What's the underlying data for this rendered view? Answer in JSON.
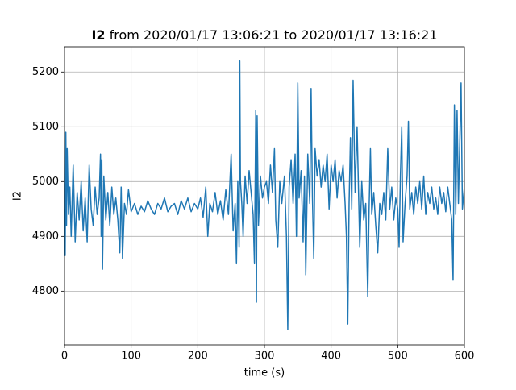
{
  "chart_data": {
    "type": "line",
    "title": {
      "bold": "I2",
      "text": "from 2020/01/17 13:06:21 to 2020/01/17 13:16:21"
    },
    "xlabel": "time (s)",
    "ylabel": "I2",
    "xlim": [
      0,
      600
    ],
    "xticks": [
      0,
      100,
      200,
      300,
      400,
      500,
      600
    ],
    "ylim": [
      4702,
      5246
    ],
    "yticks": [
      4800,
      4900,
      5000,
      5100,
      5200
    ],
    "grid": true,
    "x": [
      0,
      1,
      2,
      3,
      4,
      6,
      8,
      10,
      13,
      16,
      19,
      22,
      25,
      28,
      31,
      34,
      37,
      40,
      43,
      46,
      49,
      52,
      54,
      55,
      56,
      57,
      59,
      62,
      65,
      68,
      71,
      74,
      77,
      80,
      83,
      85,
      87,
      90,
      93,
      96,
      100,
      105,
      110,
      115,
      120,
      125,
      130,
      135,
      140,
      145,
      150,
      155,
      160,
      165,
      170,
      175,
      180,
      185,
      190,
      195,
      200,
      204,
      208,
      212,
      215,
      218,
      222,
      226,
      230,
      234,
      238,
      242,
      246,
      250,
      253,
      256,
      258,
      260,
      262,
      263,
      264,
      266,
      268,
      271,
      274,
      277,
      280,
      283,
      285,
      287,
      288,
      289,
      291,
      294,
      297,
      300,
      303,
      306,
      309,
      312,
      315,
      317,
      320,
      323,
      326,
      330,
      333,
      335,
      337,
      340,
      343,
      346,
      348,
      350,
      352,
      355,
      358,
      360,
      362,
      365,
      368,
      370,
      372,
      374,
      376,
      379,
      382,
      385,
      388,
      391,
      394,
      397,
      400,
      403,
      406,
      409,
      412,
      415,
      418,
      421,
      423,
      425,
      427,
      429,
      431,
      433,
      436,
      439,
      441,
      443,
      446,
      449,
      452,
      455,
      457,
      459,
      461,
      464,
      467,
      470,
      473,
      476,
      479,
      482,
      485,
      488,
      491,
      494,
      497,
      500,
      502,
      504,
      506,
      508,
      511,
      514,
      516,
      518,
      521,
      524,
      527,
      530,
      533,
      536,
      539,
      542,
      545,
      548,
      551,
      554,
      557,
      560,
      563,
      566,
      569,
      572,
      575,
      578,
      581,
      583,
      585,
      587,
      589,
      591,
      593,
      595,
      597,
      600
    ],
    "series": [
      {
        "name": "I2",
        "color": "#1f77b4",
        "values": [
          4950,
          4865,
          5090,
          4920,
          5060,
          4940,
          4990,
          4900,
          5030,
          4890,
          4980,
          4930,
          5000,
          4910,
          4970,
          4890,
          5030,
          4950,
          4920,
          4990,
          4940,
          4970,
          5050,
          4900,
          5040,
          4840,
          5010,
          4930,
          4980,
          4920,
          4990,
          4940,
          4970,
          4930,
          4870,
          4990,
          4860,
          4960,
          4940,
          4985,
          4945,
          4960,
          4940,
          4955,
          4945,
          4965,
          4950,
          4940,
          4960,
          4950,
          4970,
          4945,
          4955,
          4960,
          4940,
          4965,
          4950,
          4970,
          4945,
          4960,
          4950,
          4970,
          4935,
          4990,
          4900,
          4960,
          4945,
          4980,
          4940,
          4965,
          4930,
          4985,
          4940,
          5050,
          4910,
          4960,
          4850,
          5000,
          4880,
          5220,
          5000,
          4960,
          4900,
          5010,
          4960,
          5020,
          4980,
          4940,
          4850,
          5130,
          4780,
          5120,
          4920,
          5010,
          4970,
          4990,
          5000,
          4960,
          5030,
          4980,
          5060,
          4930,
          4880,
          5000,
          4960,
          5010,
          4900,
          4730,
          4990,
          5040,
          4960,
          5050,
          4900,
          5180,
          4970,
          5020,
          4890,
          5010,
          4830,
          5050,
          4960,
          5170,
          4970,
          4860,
          5060,
          5010,
          5040,
          4990,
          5030,
          5000,
          5050,
          4950,
          5030,
          5000,
          5040,
          4970,
          5020,
          5000,
          5030,
          4960,
          4900,
          4740,
          4960,
          5080,
          4950,
          5185,
          4980,
          5100,
          4990,
          4880,
          5000,
          4930,
          4960,
          4790,
          4950,
          5060,
          4940,
          4980,
          4920,
          4870,
          4960,
          4940,
          4980,
          4930,
          5060,
          4950,
          4990,
          4930,
          4970,
          4950,
          4880,
          5010,
          5100,
          4890,
          4960,
          5010,
          5110,
          4950,
          4980,
          4940,
          4990,
          4960,
          5000,
          4950,
          5010,
          4940,
          4980,
          4960,
          4990,
          4950,
          4970,
          4940,
          4990,
          4960,
          4980,
          4945,
          4990,
          4960,
          4930,
          4820,
          5140,
          4940,
          5130,
          4960,
          5070,
          5180,
          4950,
          4990
        ]
      }
    ]
  }
}
